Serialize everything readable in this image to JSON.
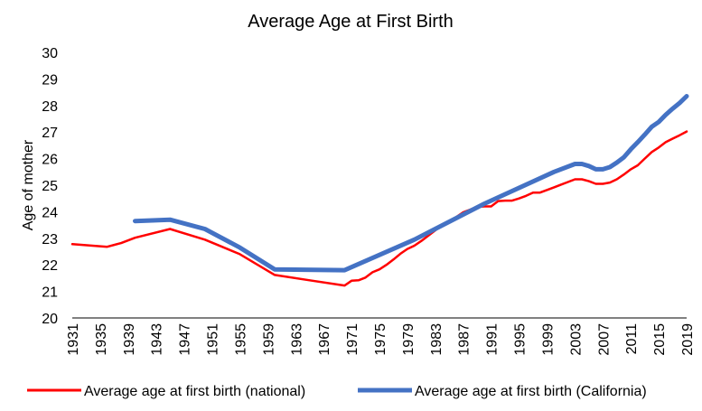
{
  "chart_data": {
    "type": "line",
    "title": "Average Age at First Birth",
    "xlabel": "",
    "ylabel": "Age of mother",
    "ylim": [
      20,
      30
    ],
    "xlim": [
      1931,
      2019
    ],
    "y_ticks": [
      20,
      21,
      22,
      23,
      24,
      25,
      26,
      27,
      28,
      29,
      30
    ],
    "x_ticks": [
      1931,
      1935,
      1939,
      1943,
      1947,
      1951,
      1955,
      1959,
      1963,
      1967,
      1971,
      1975,
      1979,
      1983,
      1987,
      1991,
      1995,
      1999,
      2003,
      2007,
      2011,
      2015,
      2019
    ],
    "grid": false,
    "legend_position": "bottom",
    "series": [
      {
        "name": "Average age at first birth (national)",
        "color": "#ff0000",
        "points": [
          [
            1931,
            22.78
          ],
          [
            1936,
            22.68
          ],
          [
            1938,
            22.82
          ],
          [
            1940,
            23.02
          ],
          [
            1945,
            23.35
          ],
          [
            1950,
            22.95
          ],
          [
            1955,
            22.4
          ],
          [
            1960,
            21.62
          ],
          [
            1965,
            21.42
          ],
          [
            1970,
            21.22
          ],
          [
            1971,
            21.4
          ],
          [
            1972,
            21.42
          ],
          [
            1973,
            21.52
          ],
          [
            1974,
            21.72
          ],
          [
            1975,
            21.83
          ],
          [
            1976,
            22.0
          ],
          [
            1977,
            22.2
          ],
          [
            1978,
            22.42
          ],
          [
            1979,
            22.6
          ],
          [
            1980,
            22.72
          ],
          [
            1981,
            22.9
          ],
          [
            1982,
            23.1
          ],
          [
            1983,
            23.3
          ],
          [
            1984,
            23.5
          ],
          [
            1985,
            23.65
          ],
          [
            1986,
            23.8
          ],
          [
            1987,
            23.98
          ],
          [
            1988,
            24.08
          ],
          [
            1989,
            24.18
          ],
          [
            1990,
            24.2
          ],
          [
            1991,
            24.2
          ],
          [
            1992,
            24.4
          ],
          [
            1993,
            24.42
          ],
          [
            1994,
            24.42
          ],
          [
            1995,
            24.5
          ],
          [
            1996,
            24.6
          ],
          [
            1997,
            24.72
          ],
          [
            1998,
            24.72
          ],
          [
            1999,
            24.82
          ],
          [
            2000,
            24.92
          ],
          [
            2001,
            25.02
          ],
          [
            2002,
            25.12
          ],
          [
            2003,
            25.22
          ],
          [
            2004,
            25.22
          ],
          [
            2005,
            25.15
          ],
          [
            2006,
            25.05
          ],
          [
            2007,
            25.05
          ],
          [
            2008,
            25.1
          ],
          [
            2009,
            25.22
          ],
          [
            2010,
            25.4
          ],
          [
            2011,
            25.6
          ],
          [
            2012,
            25.75
          ],
          [
            2013,
            26.0
          ],
          [
            2014,
            26.25
          ],
          [
            2015,
            26.42
          ],
          [
            2016,
            26.62
          ],
          [
            2017,
            26.75
          ],
          [
            2018,
            26.88
          ],
          [
            2019,
            27.02
          ]
        ]
      },
      {
        "name": "Average age at first birth (California)",
        "color": "#4472c4",
        "points": [
          [
            1940,
            23.65
          ],
          [
            1945,
            23.7
          ],
          [
            1950,
            23.35
          ],
          [
            1955,
            22.65
          ],
          [
            1960,
            21.83
          ],
          [
            1970,
            21.8
          ],
          [
            1980,
            22.95
          ],
          [
            1990,
            24.3
          ],
          [
            2000,
            25.5
          ],
          [
            2003,
            25.8
          ],
          [
            2004,
            25.8
          ],
          [
            2005,
            25.72
          ],
          [
            2006,
            25.6
          ],
          [
            2007,
            25.6
          ],
          [
            2008,
            25.68
          ],
          [
            2009,
            25.85
          ],
          [
            2010,
            26.05
          ],
          [
            2011,
            26.35
          ],
          [
            2012,
            26.62
          ],
          [
            2013,
            26.9
          ],
          [
            2014,
            27.2
          ],
          [
            2015,
            27.38
          ],
          [
            2016,
            27.65
          ],
          [
            2017,
            27.88
          ],
          [
            2018,
            28.1
          ],
          [
            2019,
            28.35
          ]
        ]
      }
    ]
  }
}
